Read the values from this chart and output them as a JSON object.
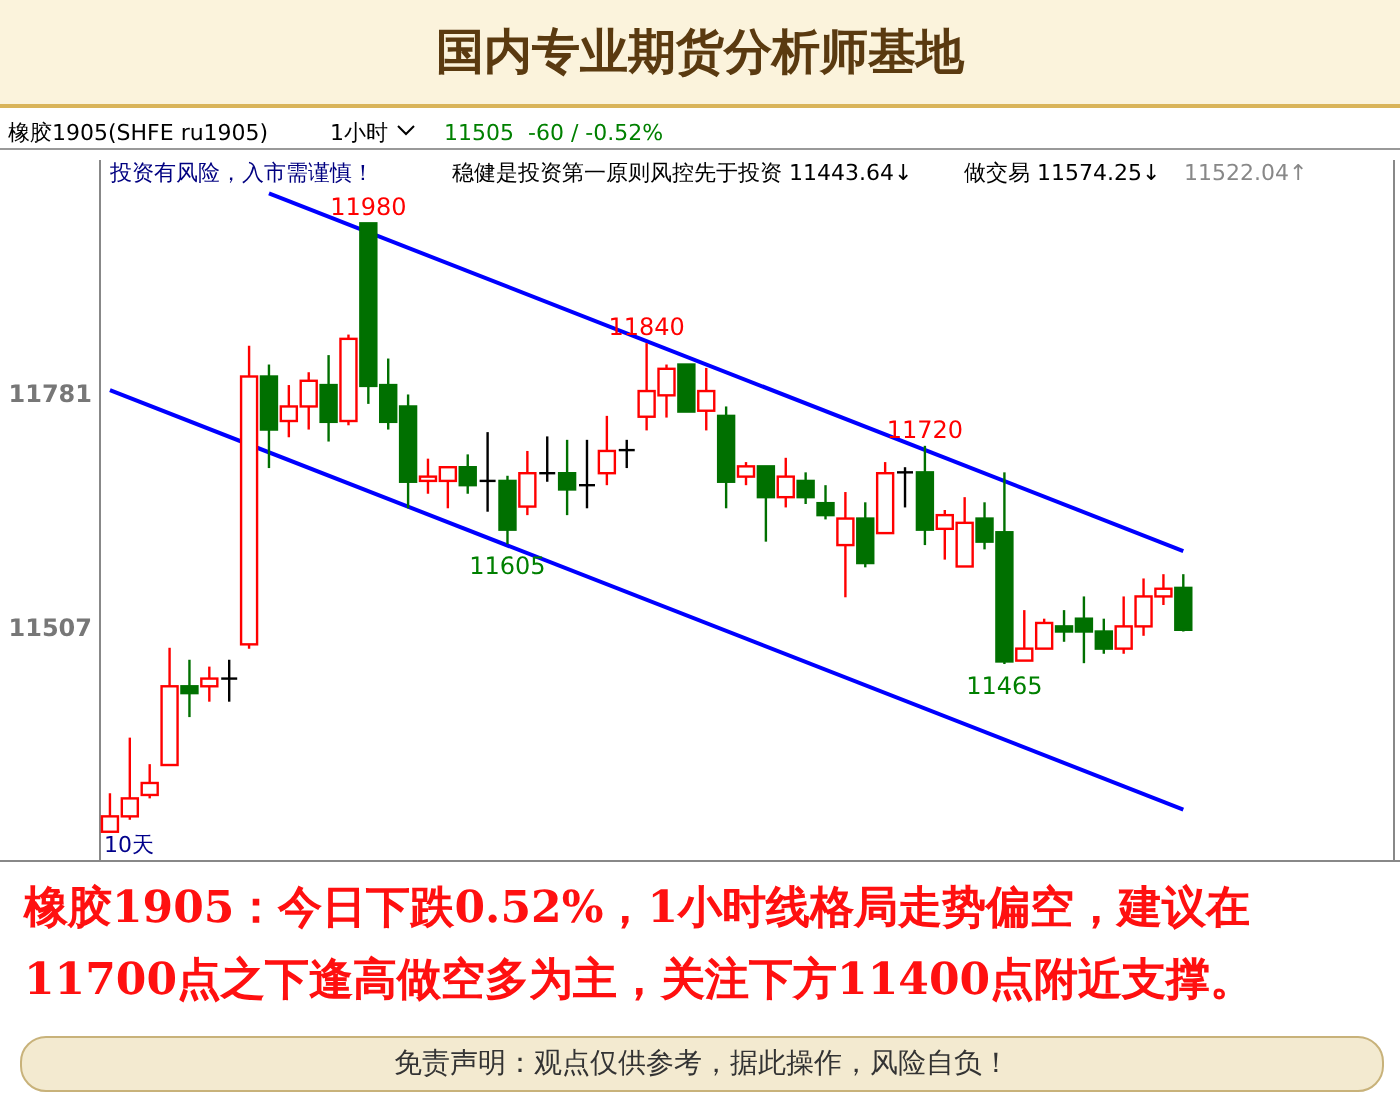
{
  "chart_data": {
    "type": "candlestick",
    "title": "国内专业期货分析师基地",
    "categories": [
      null,
      null,
      null,
      null,
      null,
      null,
      null,
      null,
      null,
      null,
      null,
      null,
      null,
      null,
      null,
      null,
      null,
      null,
      null,
      null,
      null,
      null,
      null,
      null,
      null,
      null,
      null,
      null,
      null,
      null,
      null,
      null,
      null,
      null,
      null,
      null,
      null,
      null,
      null,
      null,
      null,
      null,
      null,
      null,
      null,
      null,
      null,
      null,
      null,
      null,
      null,
      null,
      null,
      null,
      null
    ],
    "ohlc": [
      [
        11269,
        11314,
        11269,
        11287
      ],
      [
        11287,
        11379,
        11283,
        11308
      ],
      [
        11312,
        11348,
        11308,
        11326
      ],
      [
        11347,
        11484,
        11347,
        11439
      ],
      [
        11439,
        11470,
        11403,
        11431
      ],
      [
        11439,
        11462,
        11421,
        11448
      ],
      [
        11448,
        11470,
        11421,
        11448
      ],
      [
        11488,
        11837,
        11483,
        11801
      ],
      [
        11801,
        11815,
        11694,
        11739
      ],
      [
        11749,
        11791,
        11730,
        11766
      ],
      [
        11766,
        11806,
        11739,
        11796
      ],
      [
        11791,
        11826,
        11725,
        11748
      ],
      [
        11749,
        11850,
        11744,
        11845
      ],
      [
        11980,
        11980,
        11769,
        11790
      ],
      [
        11791,
        11822,
        11739,
        11748
      ],
      [
        11766,
        11780,
        11647,
        11678
      ],
      [
        11679,
        11705,
        11664,
        11684
      ],
      [
        11679,
        11695,
        11647,
        11695
      ],
      [
        11695,
        11710,
        11664,
        11674
      ],
      [
        11679,
        11736,
        11643,
        11679
      ],
      [
        11679,
        11685,
        11605,
        11622
      ],
      [
        11649,
        11714,
        11639,
        11688
      ],
      [
        11688,
        11731,
        11678,
        11688
      ],
      [
        11688,
        11727,
        11639,
        11669
      ],
      [
        11674,
        11727,
        11647,
        11674
      ],
      [
        11688,
        11755,
        11674,
        11714
      ],
      [
        11715,
        11727,
        11694,
        11715
      ],
      [
        11754,
        11840,
        11738,
        11784
      ],
      [
        11779,
        11815,
        11753,
        11810
      ],
      [
        11815,
        11815,
        11760,
        11760
      ],
      [
        11761,
        11811,
        11738,
        11784
      ],
      [
        11755,
        11766,
        11647,
        11678
      ],
      [
        11684,
        11701,
        11674,
        11696
      ],
      [
        11696,
        11696,
        11608,
        11660
      ],
      [
        11660,
        11706,
        11648,
        11684
      ],
      [
        11679,
        11689,
        11652,
        11660
      ],
      [
        11653,
        11674,
        11634,
        11639
      ],
      [
        11604,
        11666,
        11543,
        11635
      ],
      [
        11635,
        11654,
        11578,
        11583
      ],
      [
        11618,
        11701,
        11618,
        11688
      ],
      [
        11689,
        11695,
        11648,
        11689
      ],
      [
        11689,
        11720,
        11604,
        11622
      ],
      [
        11623,
        11645,
        11587,
        11639
      ],
      [
        11579,
        11660,
        11579,
        11630
      ],
      [
        11635,
        11654,
        11599,
        11608
      ],
      [
        11619,
        11689,
        11465,
        11468
      ],
      [
        11469,
        11528,
        11469,
        11483
      ],
      [
        11483,
        11518,
        11483,
        11513
      ],
      [
        11509,
        11528,
        11491,
        11503
      ],
      [
        11518,
        11544,
        11466,
        11503
      ],
      [
        11503,
        11518,
        11477,
        11483
      ],
      [
        11483,
        11544,
        11477,
        11509
      ],
      [
        11509,
        11565,
        11498,
        11544
      ],
      [
        11544,
        11570,
        11534,
        11553
      ],
      [
        11554,
        11570,
        11503,
        11505
      ]
    ],
    "series": [
      {
        "type": "line",
        "values": [
          null,
          null,
          null,
          null,
          null,
          null,
          null,
          null,
          12015,
          null,
          null,
          null,
          null,
          null,
          null,
          null,
          null,
          null,
          null,
          null,
          null,
          null,
          null,
          null,
          null,
          null,
          null,
          null,
          null,
          null,
          null,
          null,
          null,
          null,
          null,
          null,
          null,
          null,
          null,
          null,
          null,
          null,
          null,
          null,
          null,
          null,
          null,
          null,
          null,
          null,
          null,
          null,
          null,
          null,
          11597
        ],
        "color": "#0000ff"
      },
      {
        "type": "line",
        "values": [
          11785,
          null,
          null,
          null,
          null,
          null,
          null,
          null,
          null,
          null,
          null,
          null,
          null,
          null,
          null,
          null,
          null,
          null,
          null,
          null,
          null,
          null,
          null,
          null,
          null,
          null,
          null,
          null,
          null,
          null,
          null,
          null,
          null,
          null,
          null,
          null,
          null,
          null,
          null,
          null,
          null,
          null,
          null,
          null,
          null,
          null,
          null,
          null,
          null,
          null,
          null,
          null,
          null,
          null,
          11295
        ],
        "color": "#0000ff"
      }
    ],
    "ylim": [
      11236,
      12054
    ],
    "yticks": [
      11781,
      11507
    ],
    "grid": false,
    "annotations": [
      "橡胶1905(SHFE ru1905)",
      "1小时",
      "11505",
      "-60 / -0.52%",
      "投资有风险，入市需谨慎！",
      "稳健是投资第一原则风控先于投资 11443.64↓",
      "做交易 11574.25↓",
      "11522.04↑",
      "10天",
      "橡胶1905：今日下跌0.52%，1小时线格局走势偏空，建议在11700点之下逢高做空多为主，关注下方11400点附近支撑。",
      "免责声明：观点仅供参考，据此操作，风险自负！",
      {
        "text": "11980",
        "y": 11980
      },
      {
        "text": "11840",
        "y": 11840
      },
      {
        "text": "11720",
        "y": 11720
      },
      {
        "text": "11605",
        "y": 11605
      },
      {
        "text": "11465",
        "y": 11465
      }
    ]
  }
}
